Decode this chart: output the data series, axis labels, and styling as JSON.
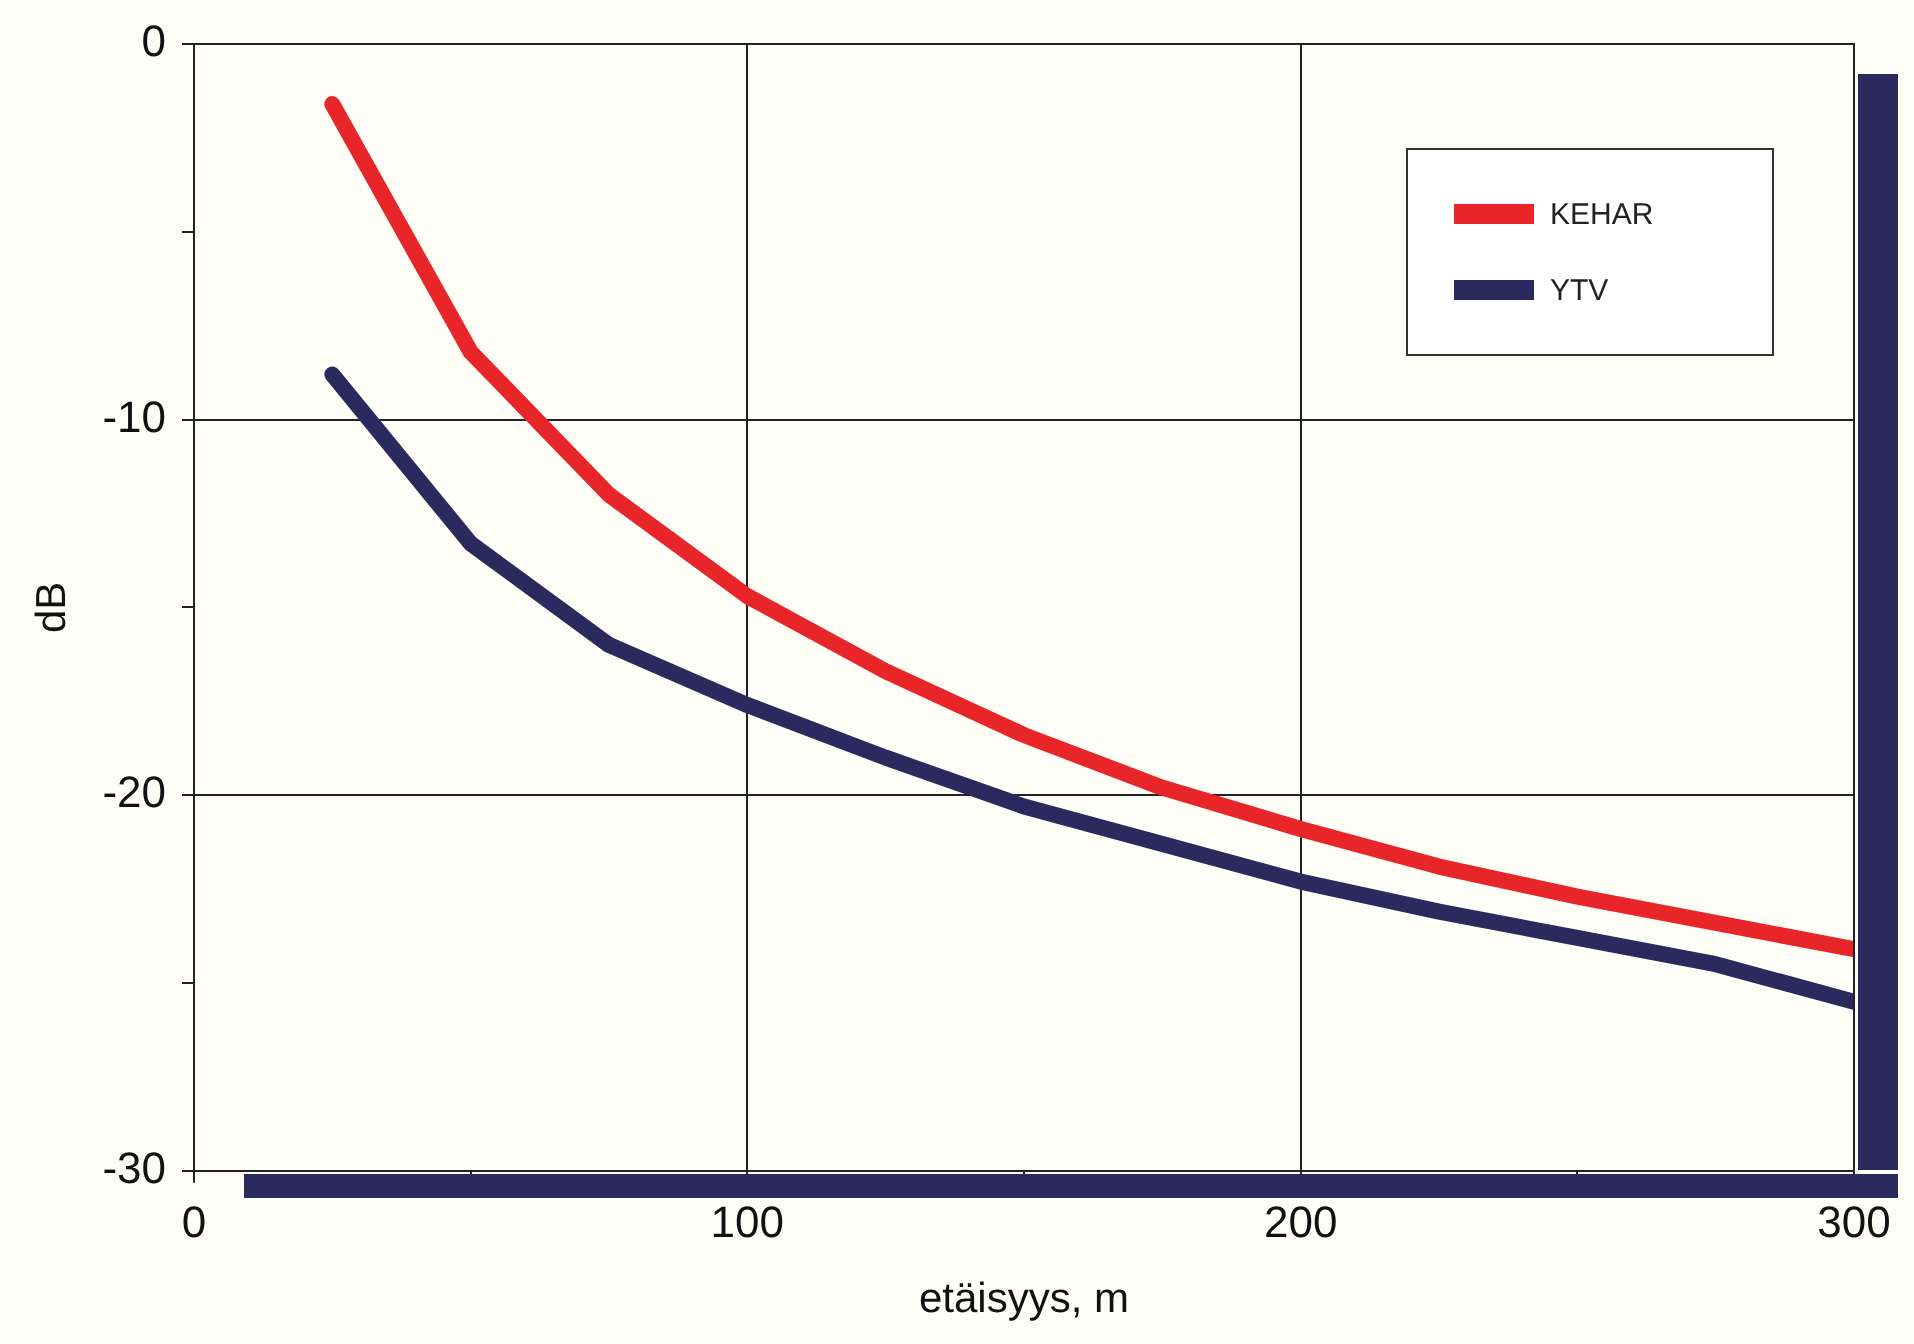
{
  "chart_data": {
    "type": "line",
    "xlabel": "etäisyys, m",
    "ylabel": "dB",
    "x": [
      25,
      50,
      75,
      100,
      125,
      150,
      175,
      200,
      225,
      250,
      275,
      300
    ],
    "series": [
      {
        "name": "KEHAR",
        "color": "#e8262a",
        "values": [
          -1.6,
          -8.2,
          -12.0,
          -14.7,
          -16.7,
          -18.4,
          -19.8,
          -20.9,
          -21.9,
          -22.7,
          -23.4,
          -24.1
        ]
      },
      {
        "name": "YTV",
        "color": "#2b2a5e",
        "values": [
          -8.8,
          -13.3,
          -16.0,
          -17.6,
          -19.0,
          -20.3,
          -21.3,
          -22.3,
          -23.1,
          -23.8,
          -24.5,
          -25.5
        ]
      }
    ],
    "xlim": [
      0,
      300
    ],
    "xticks": [
      0,
      {
        "value": 50,
        "label": null
      },
      100,
      {
        "value": 150,
        "label": null
      },
      200,
      {
        "value": 250,
        "label": null
      },
      300
    ],
    "ylim": [
      -30,
      0
    ],
    "yticks": [
      -30,
      {
        "value": -25,
        "label": null
      },
      -20,
      {
        "value": -15,
        "label": null
      },
      -10,
      {
        "value": -5,
        "label": null
      },
      0
    ],
    "grid": true,
    "legend": "top right",
    "marker": "none",
    "line_style": "solid"
  }
}
